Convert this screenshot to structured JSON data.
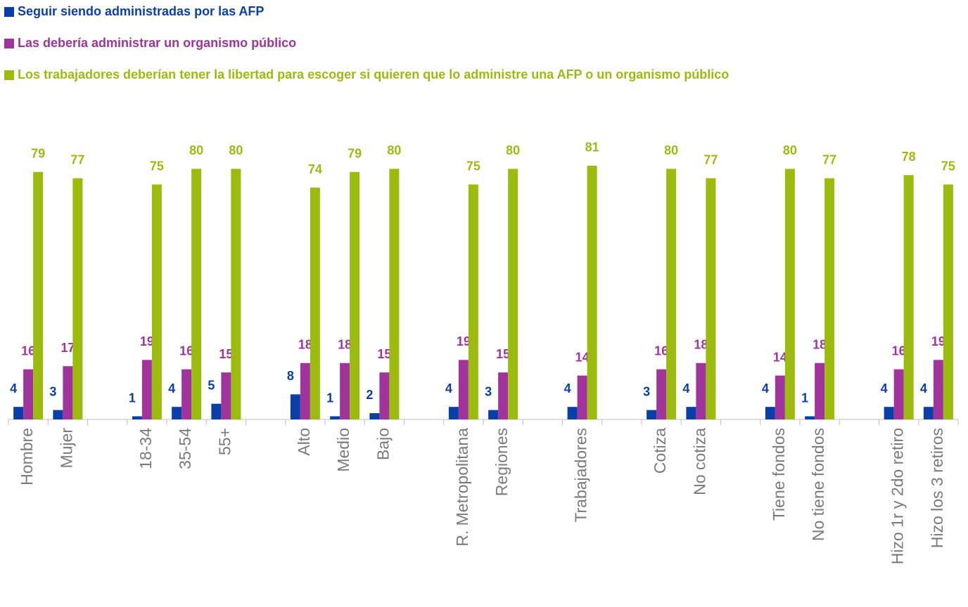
{
  "chart_data": {
    "type": "bar",
    "categories": [
      "Hombre",
      "Mujer",
      null,
      "18-34",
      "35-54",
      "55+",
      null,
      "Alto",
      "Medio",
      "Bajo",
      null,
      "R. Metropolitana",
      "Regiones",
      null,
      "Trabajadores",
      null,
      "Cotiza",
      "No cotiza",
      null,
      "Tiene fondos",
      "No tiene fondos",
      null,
      "Hizo 1r y 2do retiro",
      "Hizo los 3 retiros"
    ],
    "series": [
      {
        "name": "Seguir siendo administradas por las AFP",
        "color": "#0b3fa8",
        "values": [
          4,
          3,
          null,
          1,
          4,
          5,
          null,
          8,
          1,
          2,
          null,
          4,
          3,
          null,
          4,
          null,
          3,
          4,
          null,
          4,
          1,
          null,
          4,
          4
        ]
      },
      {
        "name": "Las debería administrar un organismo público",
        "color": "#a0349c",
        "values": [
          16,
          17,
          null,
          19,
          16,
          15,
          null,
          18,
          18,
          15,
          null,
          19,
          15,
          null,
          14,
          null,
          16,
          18,
          null,
          14,
          18,
          null,
          16,
          19
        ]
      },
      {
        "name": "Los trabajadores deberían tener la libertad para escoger si quieren que lo administre una AFP o un organismo público",
        "color": "#9bbb0e",
        "values": [
          79,
          77,
          null,
          75,
          80,
          80,
          null,
          74,
          79,
          80,
          null,
          75,
          80,
          null,
          81,
          null,
          80,
          77,
          null,
          80,
          77,
          null,
          78,
          75
        ]
      }
    ],
    "ylim": [
      0,
      85
    ]
  }
}
